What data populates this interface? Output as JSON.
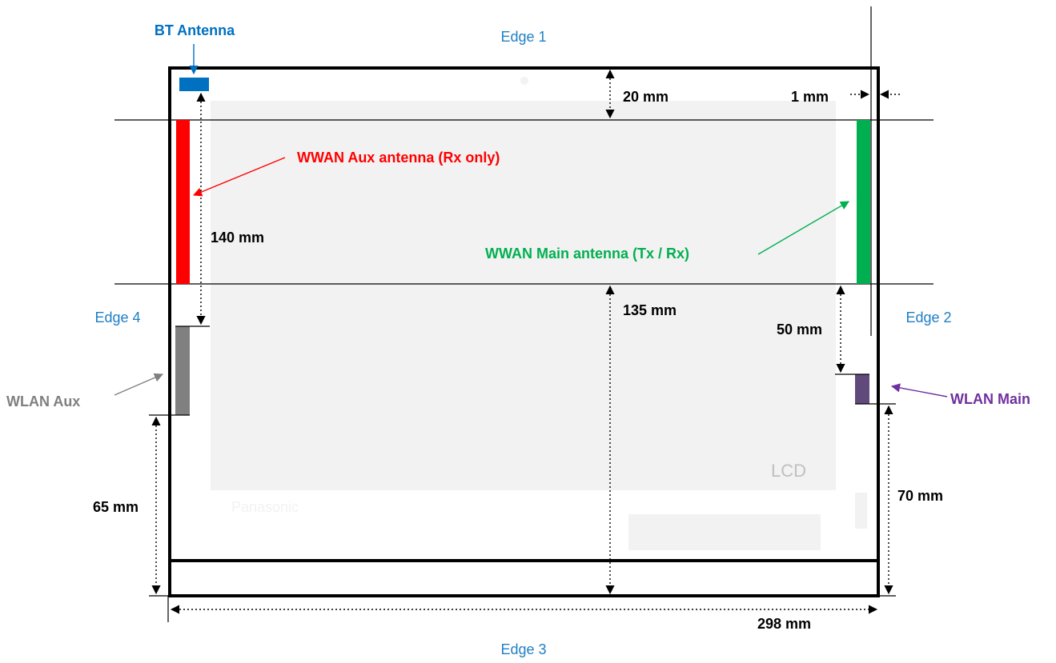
{
  "edges": {
    "edge1": "Edge 1",
    "edge2": "Edge 2",
    "edge3": "Edge 3",
    "edge4": "Edge 4"
  },
  "labels": {
    "bt_antenna": "BT Antenna",
    "wwan_aux": "WWAN Aux antenna (Rx only)",
    "wwan_main": "WWAN Main antenna (Tx / Rx)",
    "wlan_aux": "WLAN Aux",
    "wlan_main": "WLAN Main",
    "lcd": "LCD",
    "brand": "Panasonic"
  },
  "dimensions": {
    "d20": "20 mm",
    "d1": "1 mm",
    "d140": "140 mm",
    "d135": "135 mm",
    "d50": "50 mm",
    "d65": "65 mm",
    "d70": "70 mm",
    "d298": "298 mm"
  },
  "colors": {
    "edge_label": "#1f7fc4",
    "bt": "#0070c0",
    "wwan_aux": "#ff0000",
    "wwan_main": "#00b050",
    "wlan_aux": "#808080",
    "wlan_main": "#7030a0",
    "panel": "#f2f2f2",
    "outline": "#000000"
  }
}
